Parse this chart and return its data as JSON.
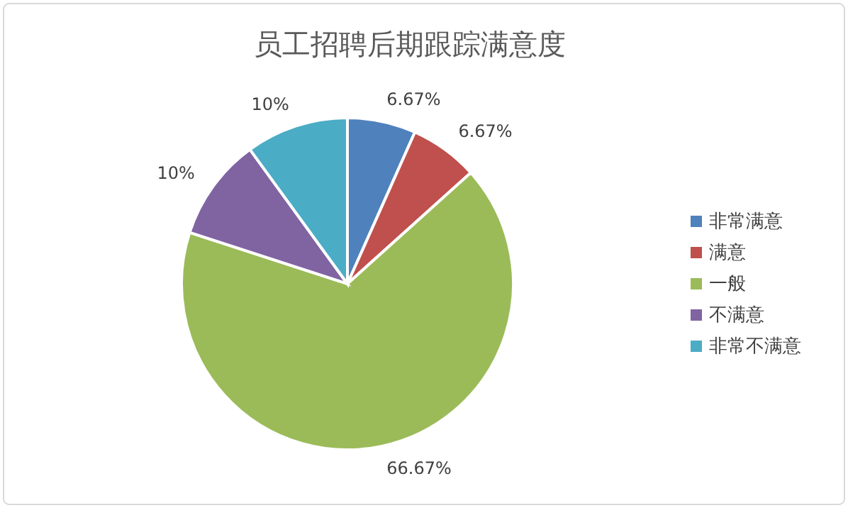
{
  "chart_data": {
    "type": "pie",
    "title": "员工招聘后期跟踪满意度",
    "categories": [
      "非常满意",
      "满意",
      "一般",
      "不满意",
      "非常不满意"
    ],
    "values": [
      6.67,
      6.67,
      66.67,
      10,
      10
    ],
    "value_labels": [
      "6.67%",
      "6.67%",
      "66.67%",
      "10%",
      "10%"
    ],
    "colors": [
      "#4f81bd",
      "#c0504d",
      "#9bbb59",
      "#8064a2",
      "#4bacc6"
    ],
    "legend": "right"
  }
}
